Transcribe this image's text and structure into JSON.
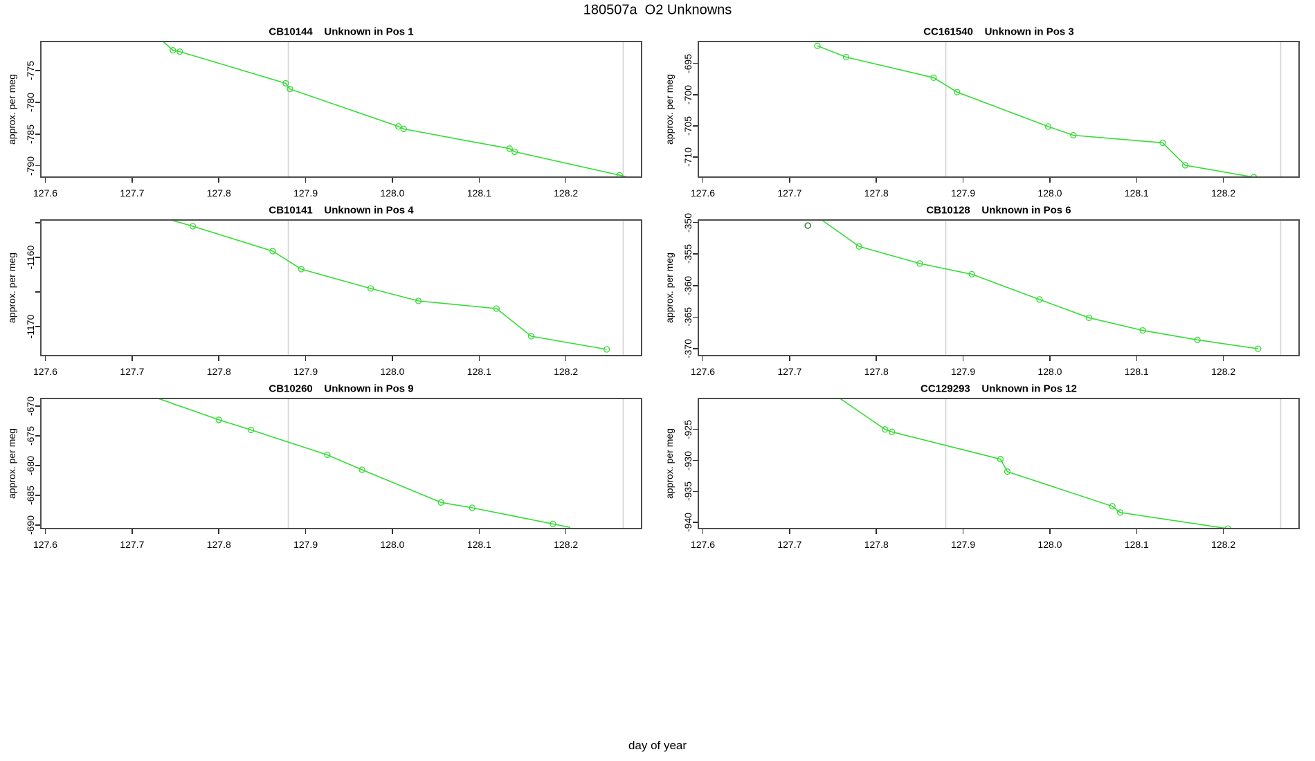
{
  "page_title": "180507a  O2 Unknowns",
  "xlabel": "day of year",
  "colors": {
    "line": "#33dd33",
    "marker": "#33dd33",
    "isolated_marker": "#1d7d1d",
    "vline": "#d2d2d2",
    "border": "#4d4d4d",
    "tick": "#303030",
    "text": "#000000",
    "background": "#ffffff"
  },
  "xticks": [
    {
      "v": 127.6,
      "label": "127.6"
    },
    {
      "v": 127.7,
      "label": "127.7"
    },
    {
      "v": 127.8,
      "label": "127.8"
    },
    {
      "v": 127.9,
      "label": "127.9"
    },
    {
      "v": 128.0,
      "label": "128.0"
    },
    {
      "v": 128.1,
      "label": "128.1"
    },
    {
      "v": 128.2,
      "label": "128.2"
    }
  ],
  "chart_data": [
    {
      "type": "line",
      "title": "CB10144    Unknown in Pos 1",
      "sample_id": "CB10144",
      "position_label": "Unknown in Pos 1",
      "ylabel": "approx. per meg",
      "xlim": [
        127.594,
        128.288
      ],
      "ylim": [
        -791.9,
        -770.3
      ],
      "vlines": [
        127.88,
        128.266
      ],
      "yticks": [
        {
          "v": -775,
          "label": "-775"
        },
        {
          "v": -780,
          "label": "-780"
        },
        {
          "v": -785,
          "label": "-785"
        },
        {
          "v": -790,
          "label": "-790"
        }
      ],
      "line": [
        [
          127.735,
          -770.3
        ],
        [
          127.747,
          -771.8
        ],
        [
          127.755,
          -772.0
        ],
        [
          127.877,
          -777.0
        ],
        [
          127.882,
          -777.9
        ],
        [
          128.007,
          -783.8
        ],
        [
          128.013,
          -784.2
        ],
        [
          128.135,
          -787.3
        ],
        [
          128.141,
          -787.8
        ],
        [
          128.262,
          -791.5
        ],
        [
          128.275,
          -791.9
        ]
      ],
      "markers": [
        [
          127.747,
          -771.8
        ],
        [
          127.755,
          -772.0
        ],
        [
          127.877,
          -777.0
        ],
        [
          127.882,
          -777.9
        ],
        [
          128.007,
          -783.8
        ],
        [
          128.013,
          -784.2
        ],
        [
          128.135,
          -787.3
        ],
        [
          128.141,
          -787.8
        ],
        [
          128.262,
          -791.5
        ]
      ],
      "isolated_points": []
    },
    {
      "type": "line",
      "title": "CC161540    Unknown in Pos 3",
      "sample_id": "CC161540",
      "position_label": "Unknown in Pos 3",
      "ylabel": "approx. per meg",
      "xlim": [
        127.594,
        128.288
      ],
      "ylim": [
        -713.3,
        -691.4
      ],
      "vlines": [
        127.88,
        128.266
      ],
      "yticks": [
        {
          "v": -695,
          "label": "-695"
        },
        {
          "v": -700,
          "label": "-700"
        },
        {
          "v": -705,
          "label": "-705"
        },
        {
          "v": -710,
          "label": "-710"
        }
      ],
      "line": [
        [
          127.732,
          -692.2
        ],
        [
          127.765,
          -694.0
        ],
        [
          127.866,
          -697.3
        ],
        [
          127.893,
          -699.6
        ],
        [
          127.998,
          -705.1
        ],
        [
          128.027,
          -706.5
        ],
        [
          128.13,
          -707.7
        ],
        [
          128.156,
          -711.3
        ],
        [
          128.235,
          -713.2
        ]
      ],
      "markers": [
        [
          127.732,
          -692.2
        ],
        [
          127.765,
          -694.0
        ],
        [
          127.866,
          -697.3
        ],
        [
          127.893,
          -699.6
        ],
        [
          127.998,
          -705.1
        ],
        [
          128.027,
          -706.5
        ],
        [
          128.13,
          -707.7
        ],
        [
          128.156,
          -711.3
        ],
        [
          128.235,
          -713.2
        ]
      ],
      "isolated_points": []
    },
    {
      "type": "line",
      "title": "CB10141    Unknown in Pos 4",
      "sample_id": "CB10141",
      "position_label": "Unknown in Pos 4",
      "ylabel": "approx. per meg",
      "xlim": [
        127.594,
        128.288
      ],
      "ylim": [
        -1174.3,
        -1154.5
      ],
      "vlines": [
        127.88,
        128.266
      ],
      "yticks": [
        {
          "v": -1155,
          "label": ""
        },
        {
          "v": -1160,
          "label": "-1160"
        },
        {
          "v": -1165,
          "label": ""
        },
        {
          "v": -1170,
          "label": "-1170"
        }
      ],
      "line": [
        [
          127.742,
          -1154.5
        ],
        [
          127.77,
          -1155.5
        ],
        [
          127.862,
          -1159.1
        ],
        [
          127.895,
          -1161.7
        ],
        [
          127.975,
          -1164.5
        ],
        [
          128.03,
          -1166.3
        ],
        [
          128.12,
          -1167.4
        ],
        [
          128.16,
          -1171.4
        ],
        [
          128.247,
          -1173.3
        ]
      ],
      "markers": [
        [
          127.77,
          -1155.5
        ],
        [
          127.862,
          -1159.1
        ],
        [
          127.895,
          -1161.7
        ],
        [
          127.975,
          -1164.5
        ],
        [
          128.03,
          -1166.3
        ],
        [
          128.12,
          -1167.4
        ],
        [
          128.16,
          -1171.4
        ],
        [
          128.247,
          -1173.3
        ]
      ],
      "isolated_points": []
    },
    {
      "type": "line",
      "title": "CB10128    Unknown in Pos 6",
      "sample_id": "CB10128",
      "position_label": "Unknown in Pos 6",
      "ylabel": "approx. per meg",
      "xlim": [
        127.594,
        128.288
      ],
      "ylim": [
        -371.2,
        -349.5
      ],
      "vlines": [
        127.88,
        128.266
      ],
      "yticks": [
        {
          "v": -350,
          "label": "-350"
        },
        {
          "v": -355,
          "label": "-355"
        },
        {
          "v": -360,
          "label": "-360"
        },
        {
          "v": -365,
          "label": "-365"
        },
        {
          "v": -370,
          "label": "-370"
        }
      ],
      "line": [
        [
          127.736,
          -349.5
        ],
        [
          127.78,
          -353.8
        ],
        [
          127.85,
          -356.5
        ],
        [
          127.91,
          -358.2
        ],
        [
          127.988,
          -362.2
        ],
        [
          128.045,
          -365.1
        ],
        [
          128.107,
          -367.1
        ],
        [
          128.17,
          -368.6
        ],
        [
          128.24,
          -370.0
        ]
      ],
      "markers": [
        [
          127.78,
          -353.8
        ],
        [
          127.85,
          -356.5
        ],
        [
          127.91,
          -358.2
        ],
        [
          127.988,
          -362.2
        ],
        [
          128.045,
          -365.1
        ],
        [
          128.107,
          -367.1
        ],
        [
          128.17,
          -368.6
        ],
        [
          128.24,
          -370.0
        ]
      ],
      "isolated_points": [
        [
          127.721,
          -350.5
        ]
      ]
    },
    {
      "type": "line",
      "title": "CB10260    Unknown in Pos 9",
      "sample_id": "CB10260",
      "position_label": "Unknown in Pos 9",
      "ylabel": "approx. per meg",
      "xlim": [
        127.594,
        128.288
      ],
      "ylim": [
        -690.7,
        -668.6
      ],
      "vlines": [
        127.88,
        128.266
      ],
      "yticks": [
        {
          "v": -670,
          "label": "-670"
        },
        {
          "v": -675,
          "label": "-675"
        },
        {
          "v": -680,
          "label": "-680"
        },
        {
          "v": -685,
          "label": "-685"
        },
        {
          "v": -690,
          "label": "-690"
        }
      ],
      "line": [
        [
          127.728,
          -668.6
        ],
        [
          127.8,
          -672.3
        ],
        [
          127.837,
          -674.0
        ],
        [
          127.925,
          -678.2
        ],
        [
          127.965,
          -680.7
        ],
        [
          128.056,
          -686.2
        ],
        [
          128.092,
          -687.1
        ],
        [
          128.185,
          -689.8
        ],
        [
          128.205,
          -690.4
        ]
      ],
      "markers": [
        [
          127.8,
          -672.3
        ],
        [
          127.837,
          -674.0
        ],
        [
          127.925,
          -678.2
        ],
        [
          127.965,
          -680.7
        ],
        [
          128.056,
          -686.2
        ],
        [
          128.092,
          -687.1
        ],
        [
          128.185,
          -689.8
        ]
      ],
      "isolated_points": []
    },
    {
      "type": "line",
      "title": "CC129293    Unknown in Pos 12",
      "sample_id": "CC129293",
      "position_label": "Unknown in Pos 12",
      "ylabel": "approx. per meg",
      "xlim": [
        127.594,
        128.288
      ],
      "ylim": [
        -941.1,
        -919.9
      ],
      "vlines": [
        127.88,
        128.266
      ],
      "yticks": [
        {
          "v": -925,
          "label": "-925"
        },
        {
          "v": -930,
          "label": "-930"
        },
        {
          "v": -935,
          "label": "-935"
        },
        {
          "v": -940,
          "label": "-940"
        }
      ],
      "line": [
        [
          127.757,
          -919.9
        ],
        [
          127.81,
          -925.0
        ],
        [
          127.818,
          -925.4
        ],
        [
          127.943,
          -929.8
        ],
        [
          127.951,
          -931.8
        ],
        [
          128.072,
          -937.4
        ],
        [
          128.081,
          -938.4
        ],
        [
          128.205,
          -941.0
        ],
        [
          128.232,
          -941.6
        ]
      ],
      "markers": [
        [
          127.81,
          -925.0
        ],
        [
          127.818,
          -925.4
        ],
        [
          127.943,
          -929.8
        ],
        [
          127.951,
          -931.8
        ],
        [
          128.072,
          -937.4
        ],
        [
          128.081,
          -938.4
        ],
        [
          128.205,
          -941.0
        ]
      ],
      "isolated_points": []
    }
  ]
}
